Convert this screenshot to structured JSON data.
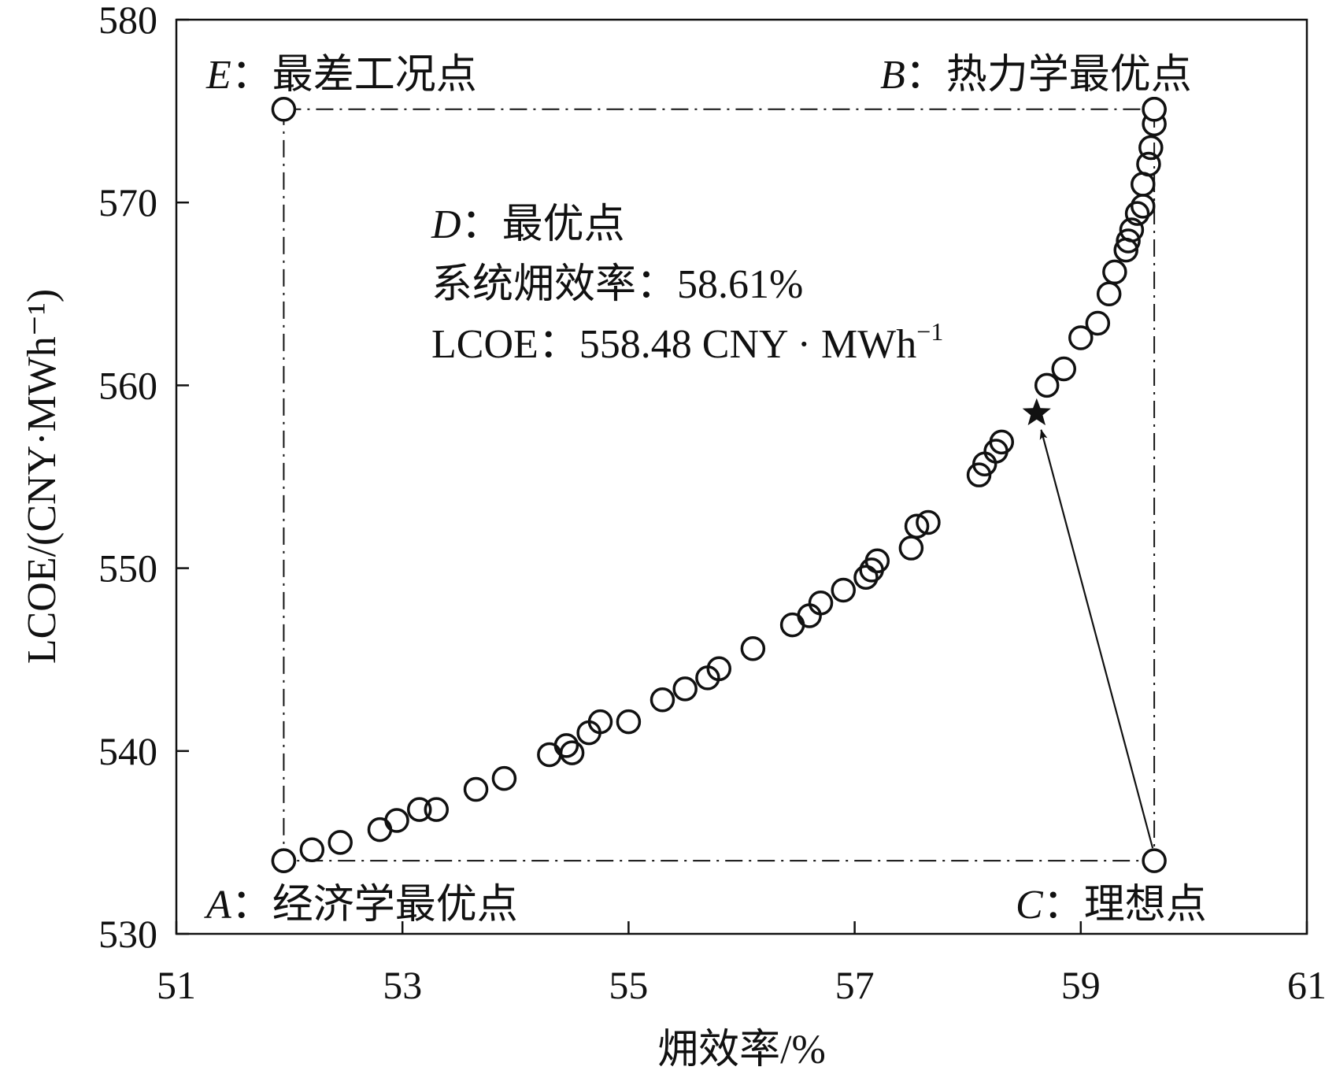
{
  "chart_data": {
    "type": "scatter",
    "title": "",
    "xlabel": "㶲效率/%",
    "ylabel": "LCOE/(CNY·MWh⁻¹)",
    "xlim": [
      51,
      61
    ],
    "ylim": [
      530,
      580
    ],
    "xticks": [
      "51",
      "53",
      "55",
      "57",
      "59",
      "61"
    ],
    "yticks": [
      "530",
      "540",
      "550",
      "560",
      "570",
      "580"
    ],
    "grid": false,
    "series": [
      {
        "marker": "open-circle",
        "points": [
          [
            51.95,
            534.0
          ],
          [
            52.2,
            534.6
          ],
          [
            52.45,
            535.0
          ],
          [
            52.8,
            535.7
          ],
          [
            52.95,
            536.2
          ],
          [
            53.15,
            536.8
          ],
          [
            53.3,
            536.8
          ],
          [
            53.65,
            537.9
          ],
          [
            53.9,
            538.5
          ],
          [
            54.3,
            539.8
          ],
          [
            54.5,
            539.9
          ],
          [
            54.45,
            540.3
          ],
          [
            54.65,
            541.0
          ],
          [
            54.75,
            541.6
          ],
          [
            55.0,
            541.6
          ],
          [
            55.3,
            542.8
          ],
          [
            55.5,
            543.4
          ],
          [
            55.7,
            544.0
          ],
          [
            55.8,
            544.5
          ],
          [
            56.1,
            545.6
          ],
          [
            56.45,
            546.9
          ],
          [
            56.6,
            547.4
          ],
          [
            56.7,
            548.1
          ],
          [
            56.9,
            548.8
          ],
          [
            57.1,
            549.5
          ],
          [
            57.15,
            549.9
          ],
          [
            57.2,
            550.4
          ],
          [
            57.5,
            551.1
          ],
          [
            57.55,
            552.3
          ],
          [
            57.65,
            552.5
          ],
          [
            58.1,
            555.1
          ],
          [
            58.15,
            555.7
          ],
          [
            58.25,
            556.4
          ],
          [
            58.3,
            556.9
          ],
          [
            58.7,
            560.0
          ],
          [
            58.85,
            560.9
          ],
          [
            59.0,
            562.6
          ],
          [
            59.15,
            563.4
          ],
          [
            59.25,
            565.0
          ],
          [
            59.3,
            566.2
          ],
          [
            59.4,
            567.4
          ],
          [
            59.42,
            567.9
          ],
          [
            59.45,
            568.5
          ],
          [
            59.5,
            569.4
          ],
          [
            59.55,
            569.8
          ],
          [
            59.55,
            571.0
          ],
          [
            59.6,
            572.1
          ],
          [
            59.62,
            573.0
          ],
          [
            59.65,
            574.3
          ],
          [
            59.65,
            575.1
          ]
        ]
      }
    ],
    "special_points": [
      {
        "id": "E",
        "letter": "E",
        "sep": "：",
        "label": "最差工况点",
        "x": 51.95,
        "y": 575.1
      },
      {
        "id": "B",
        "letter": "B",
        "sep": "：",
        "label": "热力学最优点",
        "x": 59.65,
        "y": 575.1
      },
      {
        "id": "A",
        "letter": "A",
        "sep": "：",
        "label": "经济学最优点",
        "x": 51.95,
        "y": 534.0
      },
      {
        "id": "C",
        "letter": "C",
        "sep": "：",
        "label": "理想点",
        "x": 59.65,
        "y": 534.0
      }
    ],
    "optimal_point": {
      "x": 58.61,
      "y": 558.48,
      "marker": "star"
    },
    "annotation": {
      "line1_letter": "D",
      "line1_text": "：最优点",
      "line2": "系统㶲效率：58.61%",
      "line3": "LCOE：558.48 CNY · MWh",
      "line3_sup": "−1"
    },
    "reference_box": {
      "x0": 51.95,
      "x1": 59.65,
      "y0": 534.0,
      "y1": 575.1,
      "style": "dash-dot"
    }
  }
}
